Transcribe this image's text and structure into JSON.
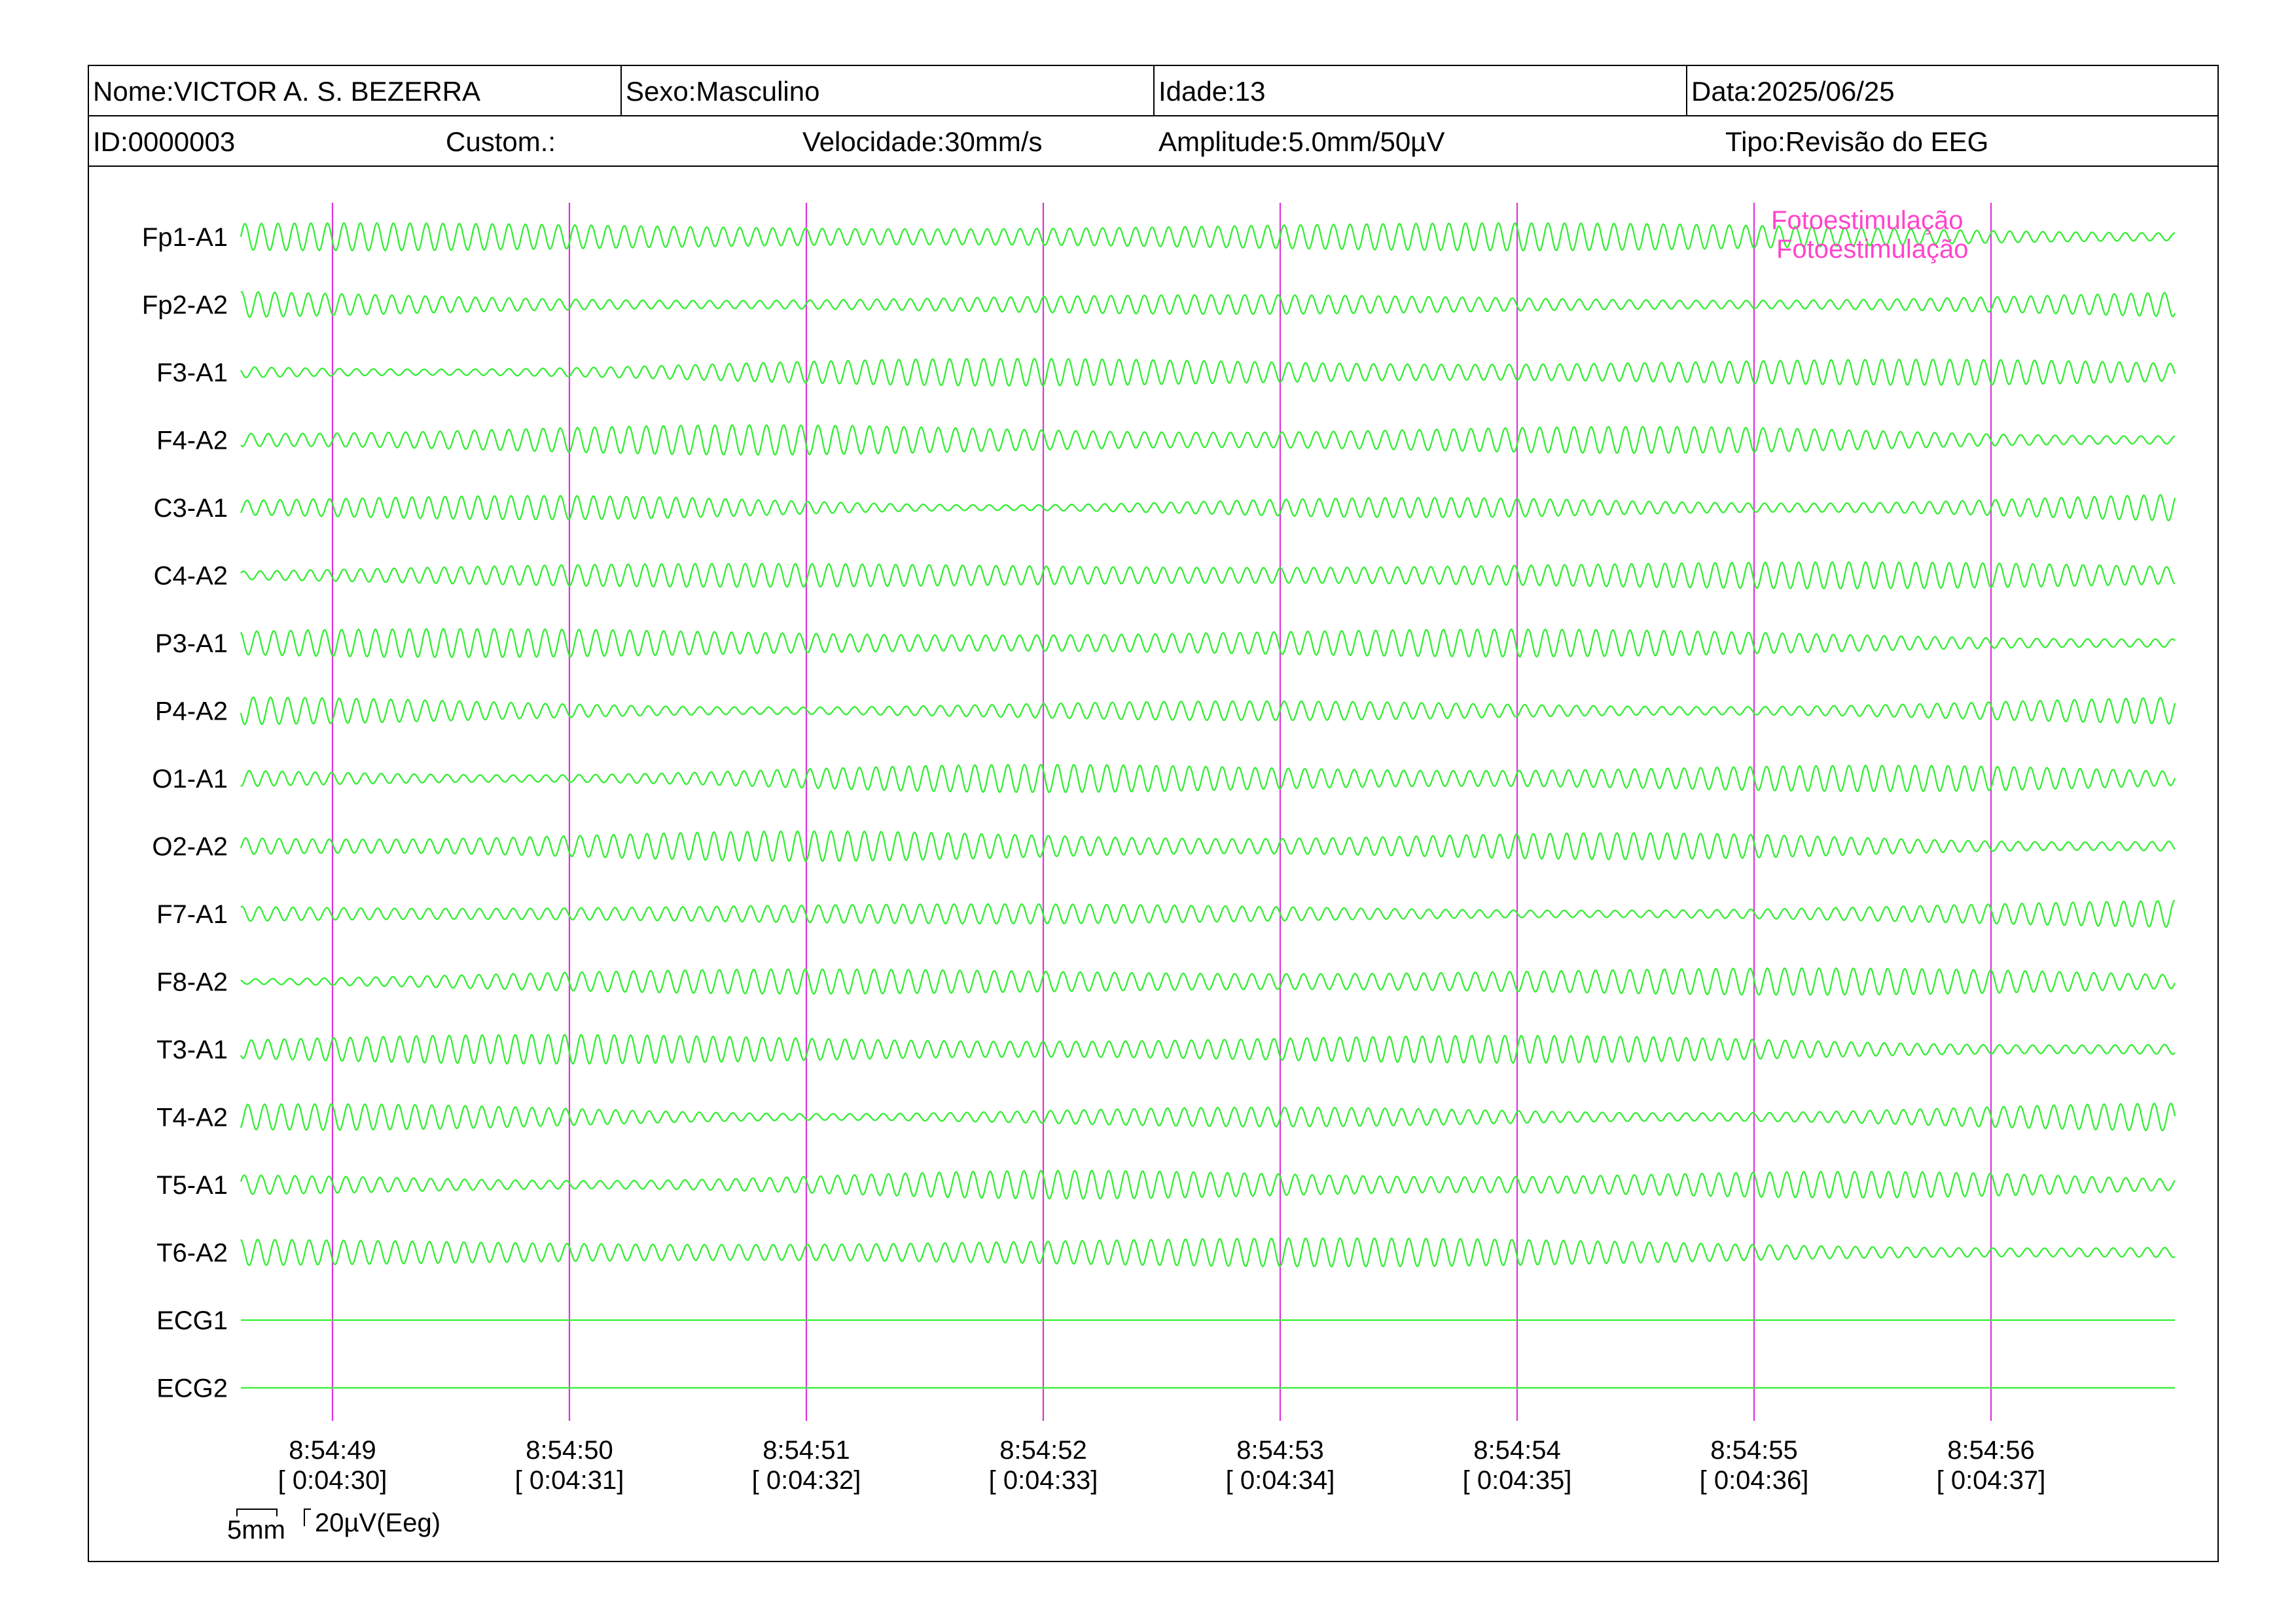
{
  "header": {
    "name": "Nome:VICTOR A. S. BEZERRA",
    "sex": "Sexo:Masculino",
    "age": "Idade:13",
    "date": "Data:2025/06/25",
    "id": "ID:0000003",
    "custom": "Custom.:",
    "speed": "Velocidade:30mm/s",
    "amplitude": "Amplitude:5.0mm/50µV",
    "type": "Tipo:Revisão do EEG"
  },
  "colors": {
    "trace": "#33ee33",
    "marker": "#dd33dd",
    "annotation": "#ff44cc",
    "text": "#000000"
  },
  "annotations": [
    "Fotoestimulação",
    "Fotoestimulação"
  ],
  "scale_bar": {
    "time": "5mm",
    "amplitude": "20µV(Eeg)"
  },
  "chart_data": {
    "type": "line",
    "channels": [
      "Fp1-A1",
      "Fp2-A2",
      "F3-A1",
      "F4-A2",
      "C3-A1",
      "C4-A2",
      "P3-A1",
      "P4-A2",
      "O1-A1",
      "O2-A2",
      "F7-A1",
      "F8-A2",
      "T3-A1",
      "T4-A2",
      "T5-A1",
      "T6-A2",
      "ECG1",
      "ECG2"
    ],
    "flat_channels": [
      "ECG1",
      "ECG2"
    ],
    "time_ticks": [
      {
        "clock": "8:54:49",
        "elapsed": "[ 0:04:30]"
      },
      {
        "clock": "8:54:50",
        "elapsed": "[ 0:04:31]"
      },
      {
        "clock": "8:54:51",
        "elapsed": "[ 0:04:32]"
      },
      {
        "clock": "8:54:52",
        "elapsed": "[ 0:04:33]"
      },
      {
        "clock": "8:54:53",
        "elapsed": "[ 0:04:34]"
      },
      {
        "clock": "8:54:54",
        "elapsed": "[ 0:04:35]"
      },
      {
        "clock": "8:54:55",
        "elapsed": "[ 0:04:36]"
      },
      {
        "clock": "8:54:56",
        "elapsed": "[ 0:04:37]"
      }
    ],
    "annotation_at_tick": 6,
    "speed_mm_per_s": 30,
    "amplitude_mm_per_50uV": 5.0
  }
}
